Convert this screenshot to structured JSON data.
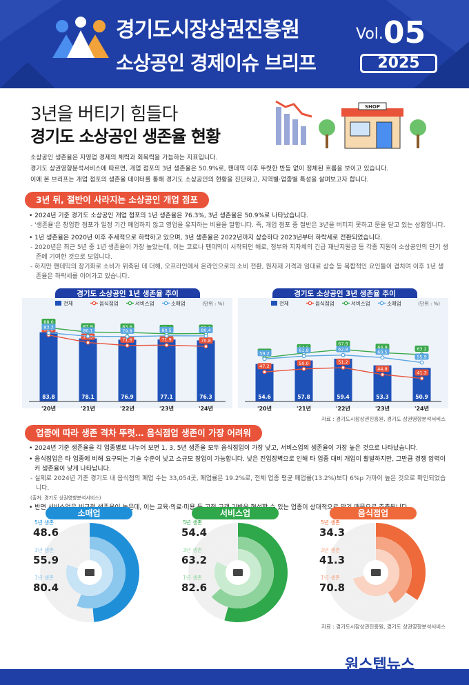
{
  "header": {
    "title1": "경기도시장상권진흥원",
    "title2": "소상공인 경제이슈 브리프",
    "vol_prefix": "Vol.",
    "vol_number": "05",
    "year": "2025"
  },
  "title": {
    "line1": "3년을 버티기 힘들다",
    "line2": "경기도 소상공인 생존율 현황",
    "shop_sign": "SHOP"
  },
  "intro": [
    "소상공인 생존율은 자영업 경제의 체력과 회복력을 가늠하는 지표입니다.",
    "경기도 상권영향분석서비스에 따르면, 개업 점포의 3년 생존율은 50.9%로, 팬데믹 이후 뚜렷한 반등 없이 정체된 흐름을 보이고 있습니다.",
    "이에 본 브리프는 개업 점포의 생존율 데이터를 통해 경기도 소상공인의 현황을 진단하고, 지역별·업종별 특성을 살펴보고자 합니다."
  ],
  "section1": {
    "heading": "3년 뒤, 절반이 사라지는 소상공인 개업 점포",
    "p1": "• 2024년 기준 경기도 소상공인 개업 점포의 1년 생존율은 76.3%, 3년 생존율은 50.9%로 나타났습니다.",
    "p1_sub": "- '생존율'은 창업한 점포가 일정 기간 폐업하지 않고 영업을 유지하는 비율을 말합니다. 즉, 개업 점포 중 절반은 3년을 버티지 못하고 문을 닫고 있는 상황입니다.",
    "p2": "• 1년 생존율은 2020년 이후 추세적으로 하락하고 있으며, 3년 생존율은 2022년까지 상승하다 2023년부터 하락세로 전환되었습니다.",
    "p2_sub1": "- 2020년은 최근 5년 중 1년 생존율이 가장 높았는데, 이는 코로나 팬데믹이 시작되던 해로, 정부와 지자체의 긴급 재난지원금 등 각종 지원이 소상공인의 단기 생존에 기여한 것으로 보입니다.",
    "p2_sub2": "- 하지만 팬데믹의 장기화로 소비가 위축된 데 더해, 오프라인에서 온라인으로의 소비 전환, 원자재 가격과 임대료 상승 등 복합적인 요인들이 겹치며 이후 1년 생존율은 하락세를 이어가고 있습니다."
  },
  "chart_data": [
    {
      "type": "bar",
      "title": "경기도 소상공인 1년 생존율 추이",
      "unit": "(단위 : %)",
      "categories": [
        "'20년",
        "'21년",
        "'22년",
        "'23년",
        "'24년"
      ],
      "ylim": [
        0,
        100
      ],
      "legend": [
        "전체",
        "음식점업",
        "서비스업",
        "소매업"
      ],
      "series": [
        {
          "name": "전체",
          "kind": "bar",
          "color": "#1f52b8",
          "values": [
            83.8,
            78.1,
            76.9,
            77.1,
            76.3
          ]
        },
        {
          "name": "음식점업",
          "kind": "line",
          "color": "#e8533a",
          "values": [
            81.2,
            74.3,
            71.6,
            71.9,
            70.8
          ]
        },
        {
          "name": "서비스업",
          "kind": "line",
          "color": "#3aa84a",
          "values": [
            88.0,
            83.9,
            83.6,
            82.4,
            82.6
          ]
        },
        {
          "name": "소매업",
          "kind": "line",
          "color": "#5aa6e0",
          "values": [
            83.3,
            80.1,
            79.8,
            80.5,
            80.4
          ]
        }
      ]
    },
    {
      "type": "bar",
      "title": "경기도 소상공인 3년 생존율 추이",
      "unit": "(단위 : %)",
      "categories": [
        "'20년",
        "'21년",
        "'22년",
        "'23년",
        "'24년"
      ],
      "ylim": [
        0,
        100
      ],
      "legend": [
        "전체",
        "음식점업",
        "서비스업",
        "소매업"
      ],
      "series": [
        {
          "name": "전체",
          "kind": "bar",
          "color": "#1f52b8",
          "values": [
            54.6,
            57.8,
            59.4,
            53.3,
            50.9
          ]
        },
        {
          "name": "음식점업",
          "kind": "line",
          "color": "#e8533a",
          "values": [
            47.2,
            50.0,
            51.2,
            44.8,
            41.3
          ]
        },
        {
          "name": "서비스업",
          "kind": "line",
          "color": "#3aa84a",
          "values": [
            60.4,
            64.6,
            67.9,
            64.9,
            63.2
          ]
        },
        {
          "name": "소매업",
          "kind": "line",
          "color": "#5aa6e0",
          "values": [
            59.2,
            61.8,
            62.8,
            60.5,
            55.9
          ]
        }
      ]
    }
  ],
  "source1": "자료 : 경기도시장상권진흥원, 경기도 상권영향분석서비스",
  "section2": {
    "heading": "업종에 따라 생존 격차 뚜렷… 음식점업 생존이 가장 어려워",
    "p1": "• 2024년 기준 생존율을 각 업종별로 나누어 보면 1, 3, 5년 생존율 모두 음식점업이 가장 낮고, 서비스업의 생존율이 가장 높은 것으로 나타났습니다.",
    "p2": "• 음식점업은 타 업종에 비해 요구되는 기술 수준이 낮고 소규모 창업이 가능합니다. 낮은 진입장벽으로 인해 타 업종 대비 개업이 활발하지만, 그만큼 경쟁 압력이 커 생존율이 낮게 나타납니다.",
    "p2_sub": "- 실제로 2024년 기준 경기도 내 음식점의 폐업 수는 33,054곳, 폐업률은 19.2%로, 전체 업종 평균 폐업률(13.2%)보다 6%p 가까이 높은 것으로 확인되었습니다.",
    "p2_note": "(출처: 경기도 상권영향분석서비스)",
    "p3": "• 반면 서비스업은 비교적 생존율이 높은데, 이는 교육·의료·미용 등 고정 고객 기반을 형성할 수 있는 업종이 상대적으로 많기 때문으로 추측됩니다."
  },
  "donuts": [
    {
      "title": "소매업",
      "color": "#1f8fd8",
      "light": "#8cc7ee",
      "lighter": "#c7e3f6",
      "labels": [
        "5년 생존",
        "3년 생존",
        "1년 생존"
      ],
      "values": [
        48.6,
        55.9,
        80.4
      ]
    },
    {
      "title": "서비스업",
      "color": "#2ea84a",
      "light": "#8fd39c",
      "lighter": "#c9ebcf",
      "labels": [
        "5년 생존",
        "3년 생존",
        "1년 생존"
      ],
      "values": [
        54.4,
        63.2,
        82.6
      ]
    },
    {
      "title": "음식점업",
      "color": "#ef6a3a",
      "light": "#f5a584",
      "lighter": "#fad3c2",
      "labels": [
        "5년 생존",
        "3년 생존",
        "1년 생존"
      ],
      "values": [
        34.3,
        41.3,
        70.8
      ]
    }
  ],
  "source2": "자료 : 경기도시장상권진흥원, 경기도 상권영향분석서비스",
  "footer_logo": "원스텝뉴스"
}
